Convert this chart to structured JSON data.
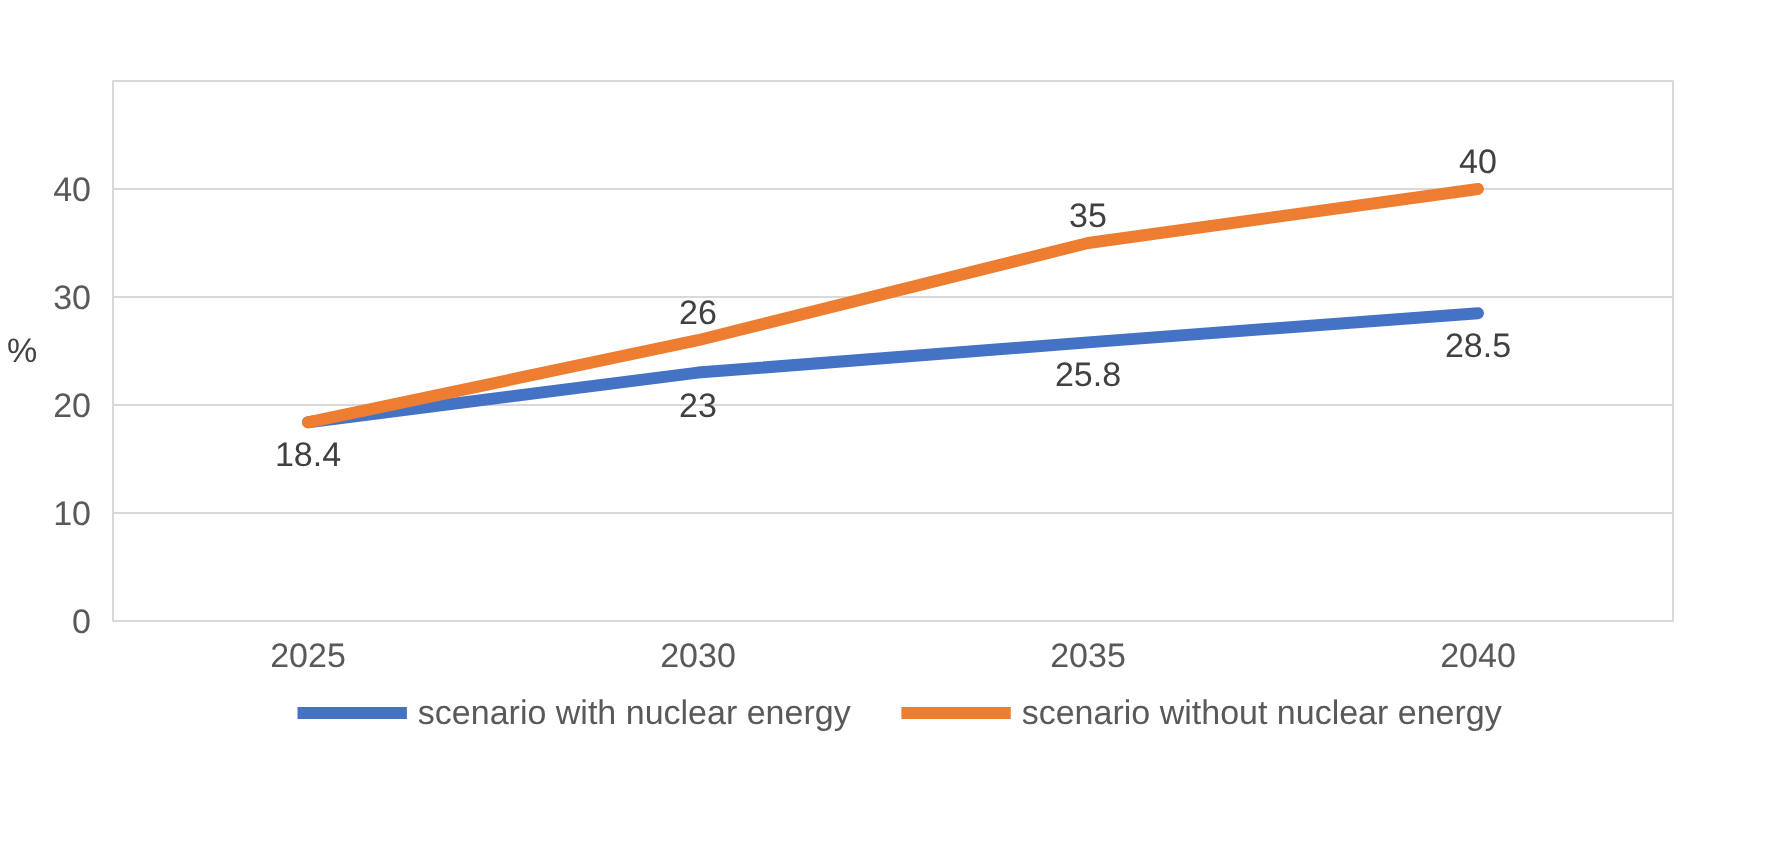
{
  "chart_data": {
    "type": "line",
    "categories": [
      "2025",
      "2030",
      "2035",
      "2040"
    ],
    "ylabel": "%",
    "ylim": [
      0,
      50
    ],
    "yticks": [
      0,
      10,
      20,
      30,
      40
    ],
    "grid": "y",
    "legend": "bottom",
    "data_labels": false,
    "marker": "none",
    "line_style": "solid",
    "series": [
      {
        "name": "scenario with nuclear energy",
        "color": "#4472c4",
        "values": [
          18.4,
          23,
          25.8,
          28.5
        ],
        "value_labels": [
          "18.4",
          "23",
          "25.8",
          "28.5"
        ]
      },
      {
        "name": "scenario without nuclear energy",
        "color": "#ed7d31",
        "values": [
          18.4,
          26,
          35,
          40
        ],
        "value_labels": [
          null,
          "26",
          "35",
          "40"
        ]
      }
    ]
  }
}
